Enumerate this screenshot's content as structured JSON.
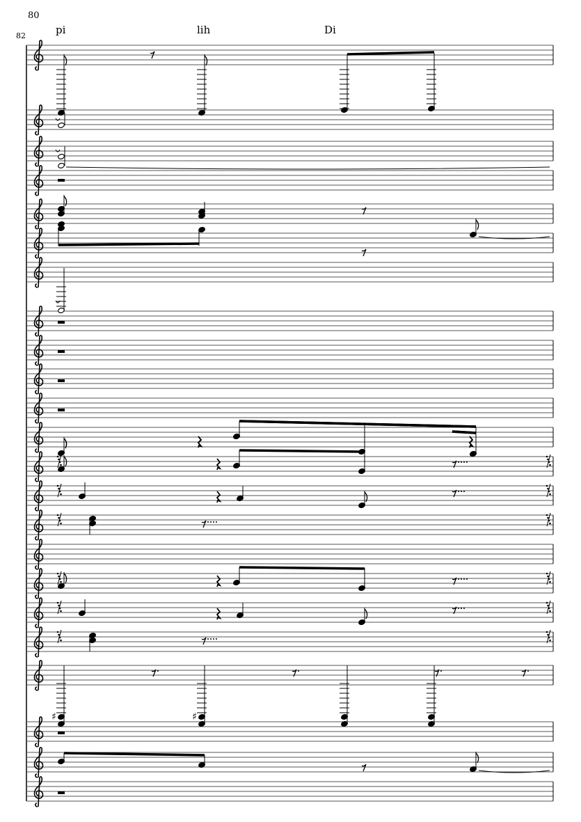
{
  "score": {
    "measure_number_top": "80",
    "measure_number_system": "82",
    "lyrics": [
      "pi",
      "lih",
      "Di"
    ],
    "staff_count": 23,
    "clef": "treble-clef",
    "ink_color": "#000000",
    "staff_line_color": "#555555"
  }
}
